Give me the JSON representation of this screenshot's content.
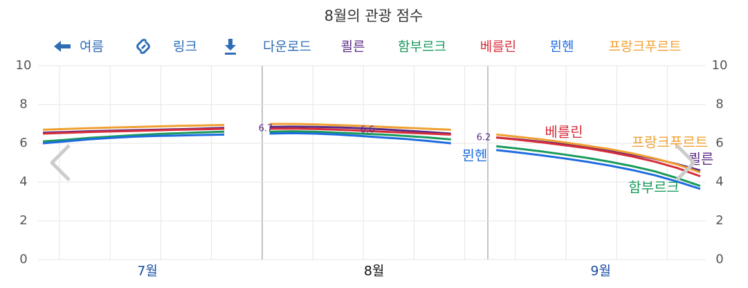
{
  "chart_data": {
    "type": "line",
    "title": "8월의 관광 점수",
    "toolbar": [
      "여름",
      "링크",
      "다운로드"
    ],
    "categories": [
      null,
      null,
      null,
      null,
      "7월",
      null,
      null,
      null,
      null,
      null,
      null,
      null,
      null,
      null,
      "8월",
      null,
      null,
      null,
      null,
      null,
      null,
      null,
      null,
      null,
      "9월",
      null,
      null,
      null,
      null,
      null
    ],
    "series": [
      {
        "name": "쾰른",
        "color": "#5b2a86",
        "values": [
          6.55,
          6.58,
          6.62,
          6.65,
          6.68,
          6.7,
          6.73,
          6.76,
          6.8,
          null,
          6.85,
          6.86,
          6.85,
          6.82,
          6.78,
          6.72,
          6.65,
          6.58,
          6.5,
          null,
          6.3,
          6.2,
          6.08,
          5.95,
          5.8,
          5.62,
          5.42,
          5.2,
          4.92,
          4.6
        ]
      },
      {
        "name": "함부르크",
        "color": "#1a9a5c",
        "values": [
          6.1,
          6.18,
          6.28,
          6.35,
          6.42,
          6.48,
          6.52,
          6.56,
          6.6,
          null,
          6.6,
          6.62,
          6.6,
          6.55,
          6.5,
          6.45,
          6.38,
          6.3,
          6.2,
          null,
          5.85,
          5.72,
          5.58,
          5.42,
          5.25,
          5.05,
          4.82,
          4.55,
          4.2,
          3.8
        ]
      },
      {
        "name": "베를린",
        "color": "#d62d3a",
        "values": [
          6.5,
          6.54,
          6.58,
          6.61,
          6.64,
          6.67,
          6.7,
          6.72,
          6.75,
          null,
          6.75,
          6.76,
          6.74,
          6.7,
          6.65,
          6.6,
          6.55,
          6.5,
          6.45,
          null,
          6.3,
          6.18,
          6.05,
          5.9,
          5.75,
          5.55,
          5.32,
          5.05,
          4.72,
          4.3
        ]
      },
      {
        "name": "뮌헨",
        "color": "#1e6be0",
        "values": [
          6.0,
          6.1,
          6.2,
          6.28,
          6.34,
          6.38,
          6.4,
          6.43,
          6.45,
          null,
          6.5,
          6.52,
          6.5,
          6.45,
          6.38,
          6.3,
          6.22,
          6.12,
          6.0,
          null,
          5.65,
          5.52,
          5.38,
          5.22,
          5.05,
          4.85,
          4.62,
          4.35,
          4.02,
          3.65
        ]
      },
      {
        "name": "프랑크푸르트",
        "color": "#f0a030",
        "values": [
          6.7,
          6.74,
          6.78,
          6.81,
          6.84,
          6.87,
          6.9,
          6.92,
          6.95,
          null,
          7.0,
          7.0,
          6.98,
          6.94,
          6.9,
          6.85,
          6.8,
          6.75,
          6.7,
          null,
          6.45,
          6.33,
          6.2,
          6.05,
          5.88,
          5.7,
          5.48,
          5.22,
          4.9,
          4.5
        ]
      }
    ],
    "annotations": [
      "6.7",
      "6.6",
      "6.2"
    ],
    "ylim": [
      0,
      10
    ],
    "yticks": [
      0,
      2,
      4,
      6,
      8,
      10
    ],
    "grid": true
  }
}
